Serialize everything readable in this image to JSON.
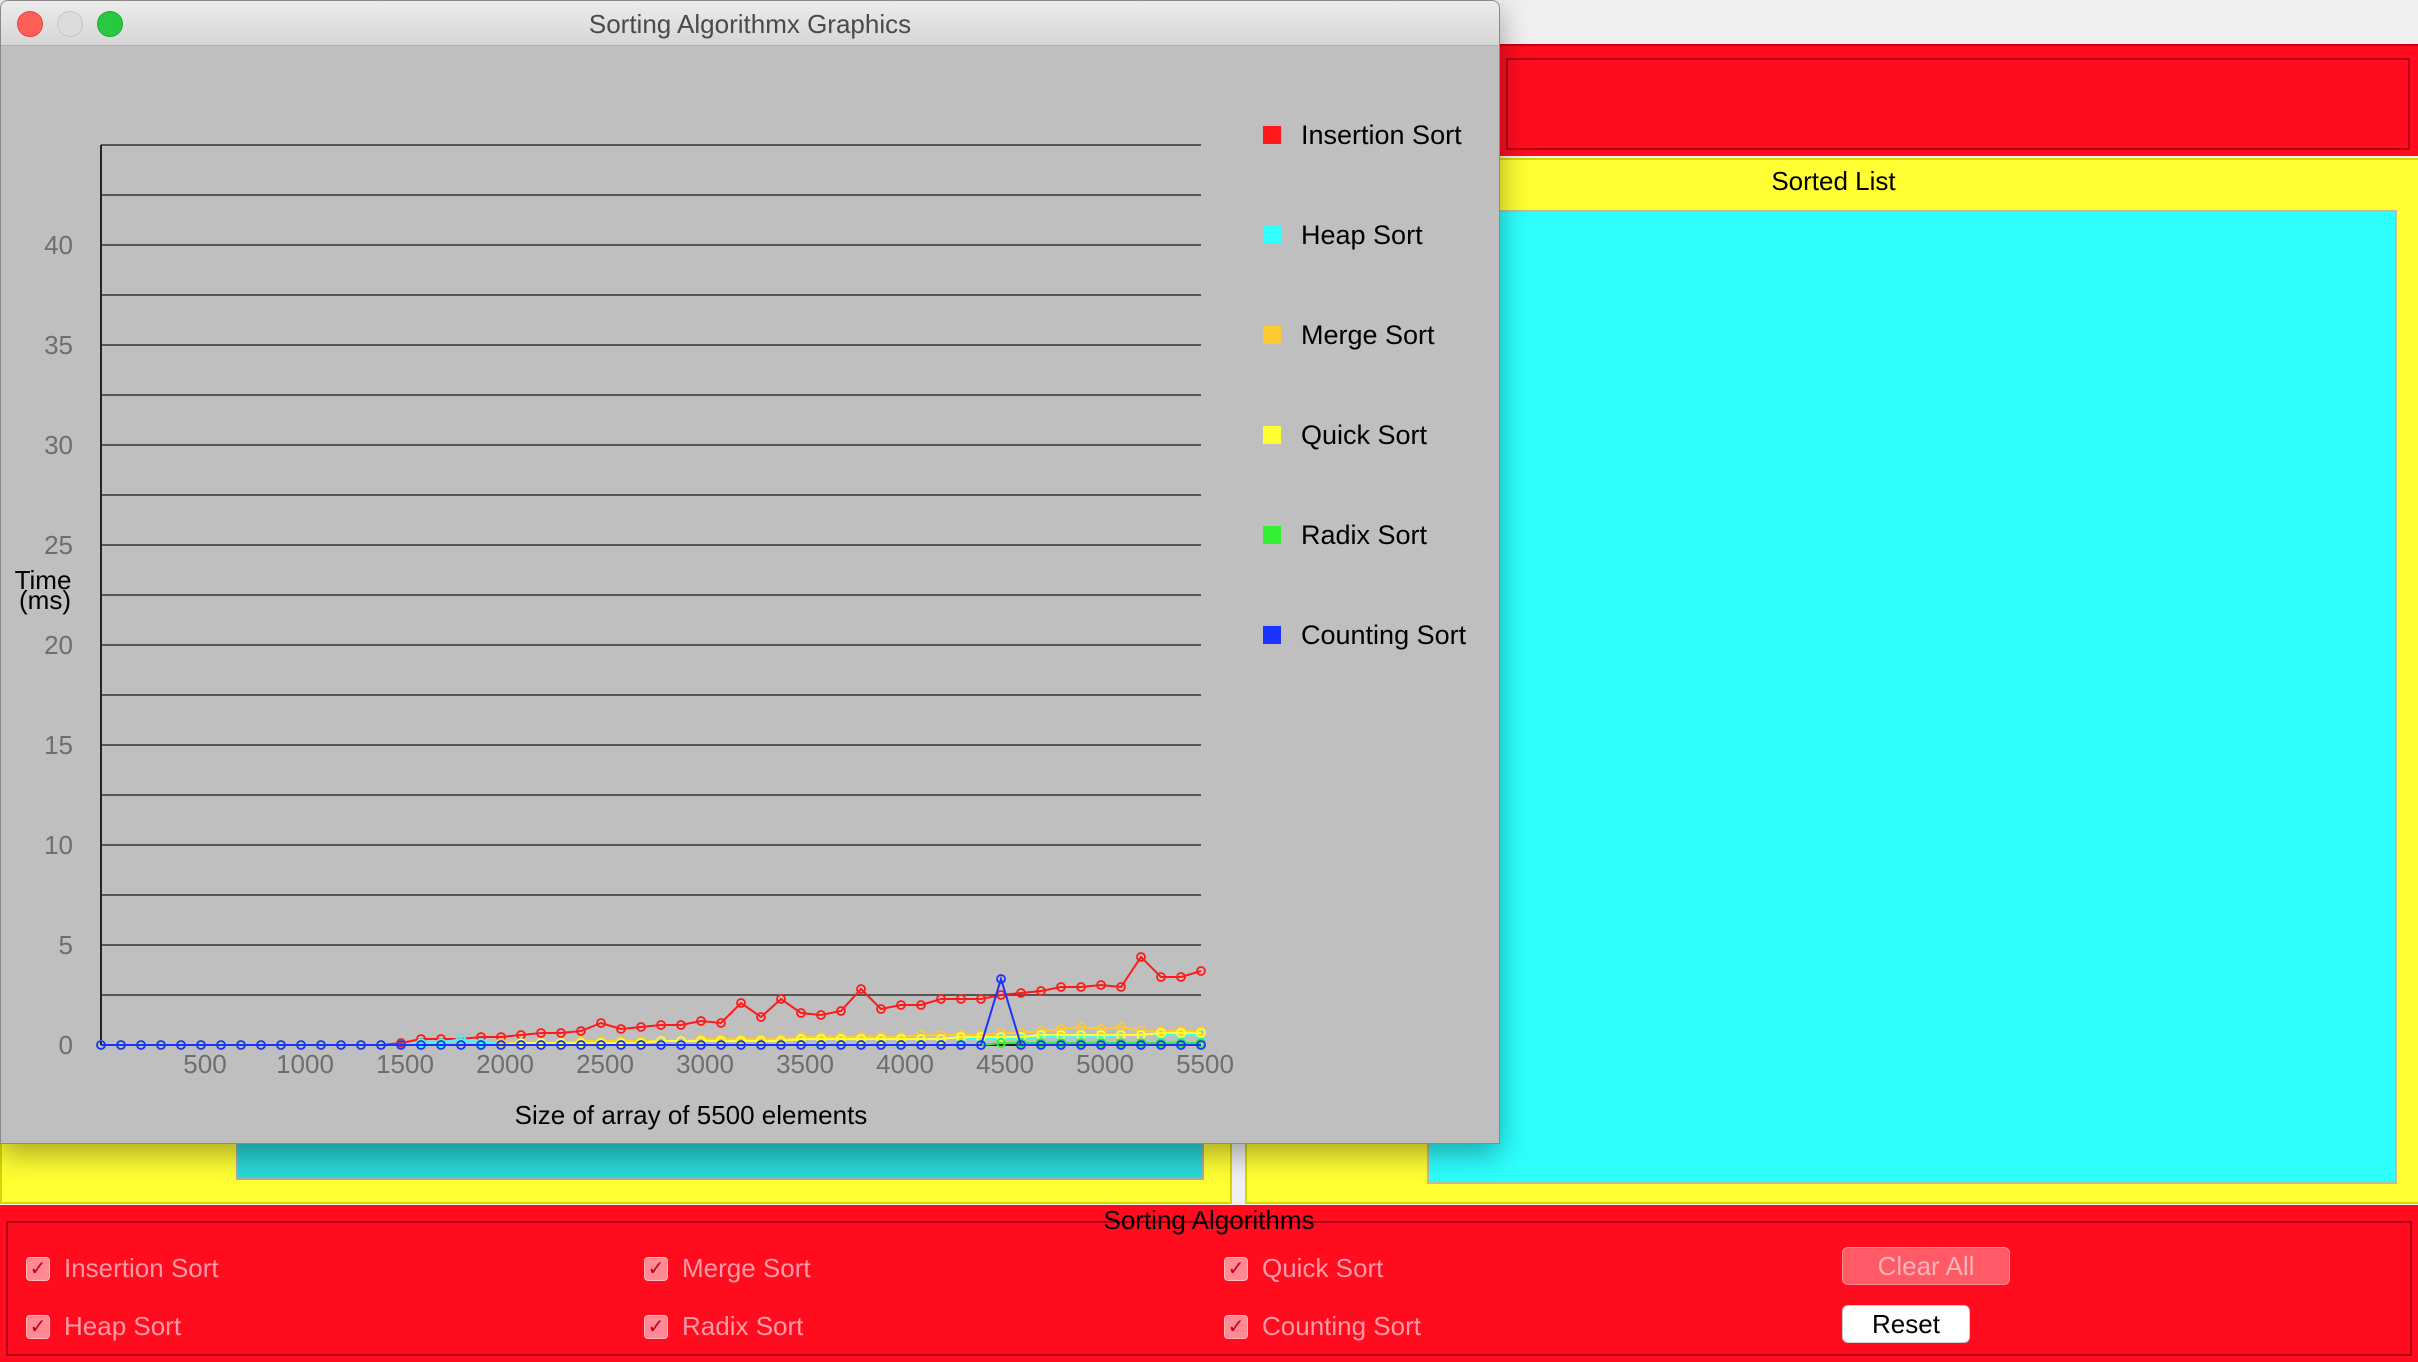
{
  "window": {
    "title": "Sorting Algorithmx Graphics"
  },
  "sorted_panel": {
    "title": "Sorted List"
  },
  "algorithms_panel": {
    "title": "Sorting Algorithms",
    "checkboxes": [
      {
        "label": "Insertion Sort",
        "checked": true
      },
      {
        "label": "Merge Sort",
        "checked": true
      },
      {
        "label": "Quick Sort",
        "checked": true
      },
      {
        "label": "Heap Sort",
        "checked": true
      },
      {
        "label": "Radix Sort",
        "checked": true
      },
      {
        "label": "Counting Sort",
        "checked": true
      }
    ],
    "clear_all_label": "Clear All",
    "reset_label": "Reset"
  },
  "chart_data": {
    "type": "line",
    "title": "",
    "xlabel": "Size of array of 5500 elements",
    "ylabel_line1": "Time",
    "ylabel_line2": "(ms)",
    "xlim": [
      0,
      5500
    ],
    "ylim": [
      0,
      45
    ],
    "x_ticks": [
      "500",
      "1000",
      "1500",
      "2000",
      "2500",
      "3000",
      "3500",
      "4000",
      "4500",
      "5000",
      "5500"
    ],
    "y_ticks": [
      "0",
      "5",
      "10",
      "15",
      "20",
      "25",
      "30",
      "35",
      "40"
    ],
    "grid": true,
    "legend_position": "right",
    "series": [
      {
        "name": "Insertion Sort",
        "color": "#ff1a1a",
        "values": [
          0,
          0,
          0,
          0,
          0,
          0,
          0,
          0,
          0,
          0,
          0,
          0,
          0,
          0,
          0,
          0.1,
          0.3,
          0.3,
          0.3,
          0.4,
          0.4,
          0.5,
          0.6,
          0.6,
          0.7,
          1.1,
          0.8,
          0.9,
          1.0,
          1.0,
          1.2,
          1.1,
          2.1,
          1.4,
          2.3,
          1.6,
          1.5,
          1.7,
          2.8,
          1.8,
          2.0,
          2.0,
          2.3,
          2.3,
          2.3,
          2.5,
          2.6,
          2.7,
          2.9,
          2.9,
          3.0,
          2.9,
          4.4,
          3.4,
          3.4,
          3.7
        ]
      },
      {
        "name": "Heap Sort",
        "color": "#33ffff",
        "values": [
          0,
          0,
          0,
          0,
          0,
          0,
          0,
          0,
          0,
          0,
          0,
          0,
          0,
          0,
          0,
          0,
          0.1,
          0.1,
          0.3,
          0.1,
          0.1,
          0.1,
          0.1,
          0.1,
          0.2,
          0.2,
          0.2,
          0.2,
          0.2,
          0.2,
          0.2,
          0.2,
          0.3,
          0.3,
          0.3,
          0.3,
          0.3,
          0.3,
          0.3,
          0.3,
          0.3,
          0.3,
          0.3,
          0.3,
          0.3,
          0.3,
          0.3,
          0.4,
          0.4,
          0.4,
          0.4,
          0.5,
          0.5,
          0.5,
          0.5,
          0.5
        ]
      },
      {
        "name": "Merge Sort",
        "color": "#ffc933",
        "values": [
          0,
          0,
          0,
          0,
          0,
          0,
          0,
          0,
          0,
          0,
          0,
          0,
          0,
          0,
          0,
          0,
          0,
          0,
          0,
          0,
          0.1,
          0.1,
          0.1,
          0.1,
          0.2,
          0.2,
          0.2,
          0.2,
          0.2,
          0.2,
          0.3,
          0.3,
          0.3,
          0.3,
          0.3,
          0.4,
          0.4,
          0.4,
          0.4,
          0.4,
          0.4,
          0.5,
          0.5,
          0.5,
          0.5,
          0.6,
          0.6,
          0.7,
          0.8,
          0.9,
          0.8,
          0.9,
          0.7,
          0.7,
          0.7,
          0.7
        ]
      },
      {
        "name": "Quick Sort",
        "color": "#ffff33",
        "values": [
          0,
          0,
          0,
          0,
          0,
          0,
          0,
          0,
          0,
          0,
          0,
          0,
          0,
          0,
          0,
          0,
          0,
          0,
          0,
          0,
          0,
          0.1,
          0.1,
          0.1,
          0.1,
          0.1,
          0.1,
          0.1,
          0.2,
          0.2,
          0.2,
          0.2,
          0.2,
          0.2,
          0.2,
          0.3,
          0.3,
          0.3,
          0.3,
          0.3,
          0.3,
          0.3,
          0.3,
          0.4,
          0.4,
          0.4,
          0.4,
          0.5,
          0.5,
          0.5,
          0.5,
          0.5,
          0.5,
          0.6,
          0.6,
          0.6
        ]
      },
      {
        "name": "Radix Sort",
        "color": "#33ee33",
        "values": [
          0,
          0,
          0,
          0,
          0,
          0,
          0,
          0,
          0,
          0,
          0,
          0,
          0,
          0,
          0,
          0,
          0,
          0,
          0,
          0,
          0,
          0,
          0,
          0,
          0,
          0,
          0,
          0,
          0,
          0,
          0,
          0,
          0,
          0,
          0,
          0,
          0,
          0,
          0,
          0,
          0,
          0,
          0,
          0,
          0,
          0.1,
          0.1,
          0.1,
          0.1,
          0.1,
          0.1,
          0.1,
          0.1,
          0.1,
          0.1,
          0.1
        ]
      },
      {
        "name": "Counting Sort",
        "color": "#1a33ff",
        "values": [
          0,
          0,
          0,
          0,
          0,
          0,
          0,
          0,
          0,
          0,
          0,
          0,
          0,
          0,
          0,
          0,
          0,
          0,
          0,
          0,
          0,
          0,
          0,
          0,
          0,
          0,
          0,
          0,
          0,
          0,
          0,
          0,
          0,
          0,
          0,
          0,
          0,
          0,
          0,
          0,
          0,
          0,
          0,
          0,
          0,
          3.3,
          0,
          0,
          0,
          0,
          0,
          0,
          0,
          0,
          0,
          0
        ]
      }
    ]
  }
}
